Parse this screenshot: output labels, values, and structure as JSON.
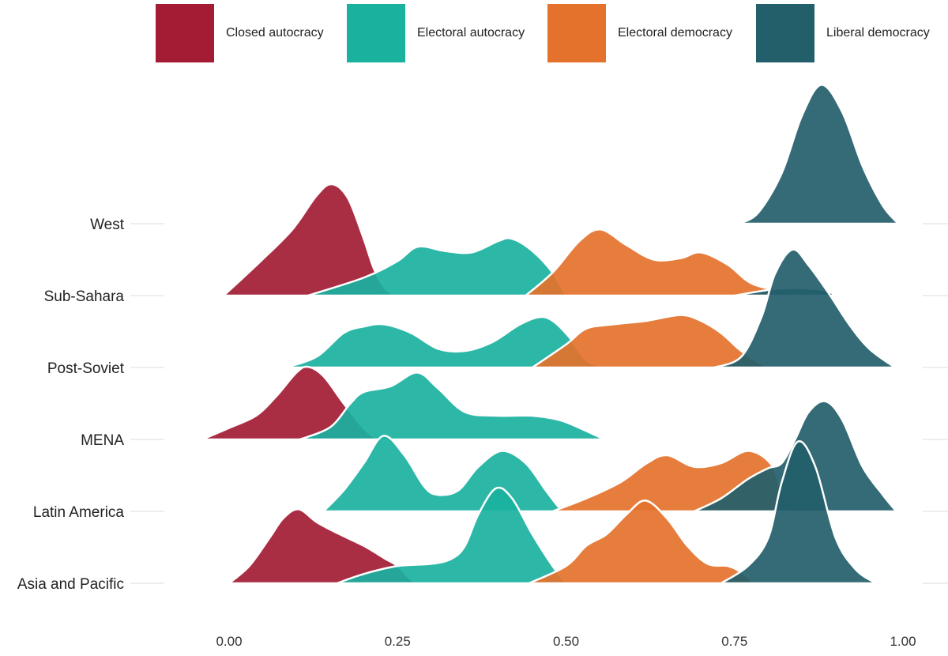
{
  "chart_data": {
    "type": "ridgeline-density",
    "title": "",
    "xlabel": "",
    "ylabel": "",
    "xlim": [
      -0.15,
      1.05
    ],
    "x_ticks": [
      "0.00",
      "0.25",
      "0.50",
      "0.75",
      "1.00"
    ],
    "x_tick_values": [
      0,
      0.25,
      0.5,
      0.75,
      1.0
    ],
    "legend": {
      "position": "top",
      "entries": [
        {
          "name": "Closed autocracy",
          "color": "#A31C33"
        },
        {
          "name": "Electoral autocracy",
          "color": "#1AB19F"
        },
        {
          "name": "Electoral democracy",
          "color": "#E4722D"
        },
        {
          "name": "Liberal democracy",
          "color": "#235E6B"
        }
      ]
    },
    "density_note_unit": "relative density (row spacing = 1)",
    "rows": [
      {
        "label": "West",
        "series": [
          {
            "regime": 3,
            "points": [
              [
                0.756,
                0
              ],
              [
                0.785,
                0.15
              ],
              [
                0.82,
                0.7
              ],
              [
                0.85,
                1.5
              ],
              [
                0.879,
                1.93
              ],
              [
                0.91,
                1.55
              ],
              [
                0.94,
                0.8
              ],
              [
                0.97,
                0.25
              ],
              [
                0.993,
                0
              ]
            ]
          }
        ]
      },
      {
        "label": "Sub-Sahara",
        "series": [
          {
            "regime": 0,
            "points": [
              [
                -0.008,
                0
              ],
              [
                0.047,
                0.48
              ],
              [
                0.094,
                0.92
              ],
              [
                0.129,
                1.38
              ],
              [
                0.152,
                1.55
              ],
              [
                0.176,
                1.36
              ],
              [
                0.199,
                0.81
              ],
              [
                0.215,
                0.37
              ],
              [
                0.23,
                0.12
              ],
              [
                0.245,
                0
              ]
            ]
          },
          {
            "regime": 1,
            "points": [
              [
                0.117,
                0
              ],
              [
                0.2,
                0.25
              ],
              [
                0.25,
                0.48
              ],
              [
                0.28,
                0.68
              ],
              [
                0.32,
                0.62
              ],
              [
                0.36,
                0.6
              ],
              [
                0.4,
                0.76
              ],
              [
                0.42,
                0.79
              ],
              [
                0.45,
                0.62
              ],
              [
                0.48,
                0.32
              ],
              [
                0.5,
                0
              ]
            ]
          },
          {
            "regime": 2,
            "points": [
              [
                0.44,
                0
              ],
              [
                0.48,
                0.32
              ],
              [
                0.52,
                0.76
              ],
              [
                0.551,
                0.92
              ],
              [
                0.59,
                0.7
              ],
              [
                0.63,
                0.5
              ],
              [
                0.67,
                0.52
              ],
              [
                0.7,
                0.6
              ],
              [
                0.74,
                0.43
              ],
              [
                0.78,
                0.15
              ],
              [
                0.85,
                0.03
              ],
              [
                0.897,
                0
              ]
            ]
          },
          {
            "regime": 3,
            "points": [
              [
                0.75,
                0
              ],
              [
                0.82,
                0.1
              ],
              [
                0.88,
                0.08
              ],
              [
                0.9,
                0
              ]
            ]
          }
        ]
      },
      {
        "label": "Post-Soviet",
        "series": [
          {
            "regime": 1,
            "points": [
              [
                0.084,
                0
              ],
              [
                0.13,
                0.15
              ],
              [
                0.17,
                0.48
              ],
              [
                0.2,
                0.57
              ],
              [
                0.23,
                0.6
              ],
              [
                0.27,
                0.48
              ],
              [
                0.31,
                0.26
              ],
              [
                0.35,
                0.23
              ],
              [
                0.39,
                0.35
              ],
              [
                0.43,
                0.59
              ],
              [
                0.46,
                0.7
              ],
              [
                0.48,
                0.65
              ],
              [
                0.504,
                0.43
              ],
              [
                0.53,
                0.1
              ],
              [
                0.56,
                0
              ]
            ]
          },
          {
            "regime": 2,
            "points": [
              [
                0.45,
                0
              ],
              [
                0.5,
                0.32
              ],
              [
                0.53,
                0.54
              ],
              [
                0.57,
                0.6
              ],
              [
                0.62,
                0.65
              ],
              [
                0.67,
                0.73
              ],
              [
                0.7,
                0.65
              ],
              [
                0.73,
                0.48
              ],
              [
                0.756,
                0.26
              ],
              [
                0.78,
                0.1
              ],
              [
                0.8,
                0
              ]
            ]
          },
          {
            "regime": 3,
            "points": [
              [
                0.72,
                0
              ],
              [
                0.76,
                0.15
              ],
              [
                0.79,
                0.7
              ],
              [
                0.81,
                1.3
              ],
              [
                0.836,
                1.64
              ],
              [
                0.86,
                1.42
              ],
              [
                0.89,
                1.03
              ],
              [
                0.92,
                0.6
              ],
              [
                0.95,
                0.26
              ],
              [
                0.988,
                0
              ]
            ]
          }
        ]
      },
      {
        "label": "MENA",
        "series": [
          {
            "regime": 0,
            "points": [
              [
                -0.04,
                0
              ],
              [
                0.0,
                0.16
              ],
              [
                0.04,
                0.33
              ],
              [
                0.07,
                0.6
              ],
              [
                0.1,
                0.93
              ],
              [
                0.117,
                1.01
              ],
              [
                0.14,
                0.88
              ],
              [
                0.17,
                0.5
              ],
              [
                0.2,
                0.15
              ],
              [
                0.22,
                0
              ]
            ]
          },
          {
            "regime": 1,
            "points": [
              [
                0.105,
                0
              ],
              [
                0.15,
                0.17
              ],
              [
                0.18,
                0.5
              ],
              [
                0.2,
                0.66
              ],
              [
                0.24,
                0.74
              ],
              [
                0.279,
                0.93
              ],
              [
                0.31,
                0.71
              ],
              [
                0.35,
                0.38
              ],
              [
                0.4,
                0.33
              ],
              [
                0.45,
                0.33
              ],
              [
                0.49,
                0.27
              ],
              [
                0.52,
                0.16
              ],
              [
                0.557,
                0
              ]
            ]
          }
        ]
      },
      {
        "label": "Latin America",
        "series": [
          {
            "regime": 1,
            "points": [
              [
                0.14,
                0
              ],
              [
                0.17,
                0.29
              ],
              [
                0.2,
                0.67
              ],
              [
                0.229,
                1.05
              ],
              [
                0.26,
                0.78
              ],
              [
                0.29,
                0.34
              ],
              [
                0.31,
                0.23
              ],
              [
                0.34,
                0.29
              ],
              [
                0.37,
                0.62
              ],
              [
                0.405,
                0.84
              ],
              [
                0.44,
                0.67
              ],
              [
                0.47,
                0.29
              ],
              [
                0.49,
                0.05
              ],
              [
                0.5,
                0
              ]
            ]
          },
          {
            "regime": 2,
            "points": [
              [
                0.48,
                0
              ],
              [
                0.53,
                0.18
              ],
              [
                0.58,
                0.4
              ],
              [
                0.62,
                0.67
              ],
              [
                0.65,
                0.78
              ],
              [
                0.69,
                0.62
              ],
              [
                0.73,
                0.67
              ],
              [
                0.77,
                0.84
              ],
              [
                0.803,
                0.67
              ],
              [
                0.82,
                0.3
              ],
              [
                0.84,
                0
              ]
            ]
          },
          {
            "regime": 3,
            "points": [
              [
                0.69,
                0
              ],
              [
                0.73,
                0.18
              ],
              [
                0.77,
                0.45
              ],
              [
                0.8,
                0.6
              ],
              [
                0.82,
                0.67
              ],
              [
                0.84,
                1.0
              ],
              [
                0.86,
                1.38
              ],
              [
                0.885,
                1.53
              ],
              [
                0.91,
                1.27
              ],
              [
                0.94,
                0.62
              ],
              [
                0.97,
                0.23
              ],
              [
                0.99,
                0
              ]
            ]
          }
        ]
      },
      {
        "label": "Asia and Pacific",
        "series": [
          {
            "regime": 0,
            "points": [
              [
                0.0,
                0
              ],
              [
                0.03,
                0.24
              ],
              [
                0.06,
                0.63
              ],
              [
                0.08,
                0.9
              ],
              [
                0.103,
                1.03
              ],
              [
                0.13,
                0.85
              ],
              [
                0.16,
                0.7
              ],
              [
                0.2,
                0.52
              ],
              [
                0.23,
                0.35
              ],
              [
                0.25,
                0.24
              ],
              [
                0.27,
                0.05
              ],
              [
                0.29,
                0
              ]
            ]
          },
          {
            "regime": 1,
            "points": [
              [
                0.16,
                0
              ],
              [
                0.2,
                0.13
              ],
              [
                0.25,
                0.24
              ],
              [
                0.3,
                0.27
              ],
              [
                0.33,
                0.34
              ],
              [
                0.35,
                0.52
              ],
              [
                0.37,
                0.96
              ],
              [
                0.396,
                1.32
              ],
              [
                0.42,
                1.18
              ],
              [
                0.45,
                0.68
              ],
              [
                0.48,
                0.24
              ],
              [
                0.5,
                0
              ]
            ]
          },
          {
            "regime": 2,
            "points": [
              [
                0.445,
                0
              ],
              [
                0.5,
                0.24
              ],
              [
                0.53,
                0.52
              ],
              [
                0.56,
                0.68
              ],
              [
                0.59,
                0.96
              ],
              [
                0.618,
                1.15
              ],
              [
                0.65,
                0.9
              ],
              [
                0.68,
                0.52
              ],
              [
                0.71,
                0.27
              ],
              [
                0.74,
                0.24
              ],
              [
                0.76,
                0.15
              ],
              [
                0.78,
                0
              ]
            ]
          },
          {
            "regime": 3,
            "points": [
              [
                0.73,
                0
              ],
              [
                0.77,
                0.24
              ],
              [
                0.8,
                0.63
              ],
              [
                0.82,
                1.4
              ],
              [
                0.844,
                1.97
              ],
              [
                0.87,
                1.62
              ],
              [
                0.9,
                0.63
              ],
              [
                0.93,
                0.19
              ],
              [
                0.96,
                0
              ]
            ]
          }
        ]
      }
    ]
  }
}
